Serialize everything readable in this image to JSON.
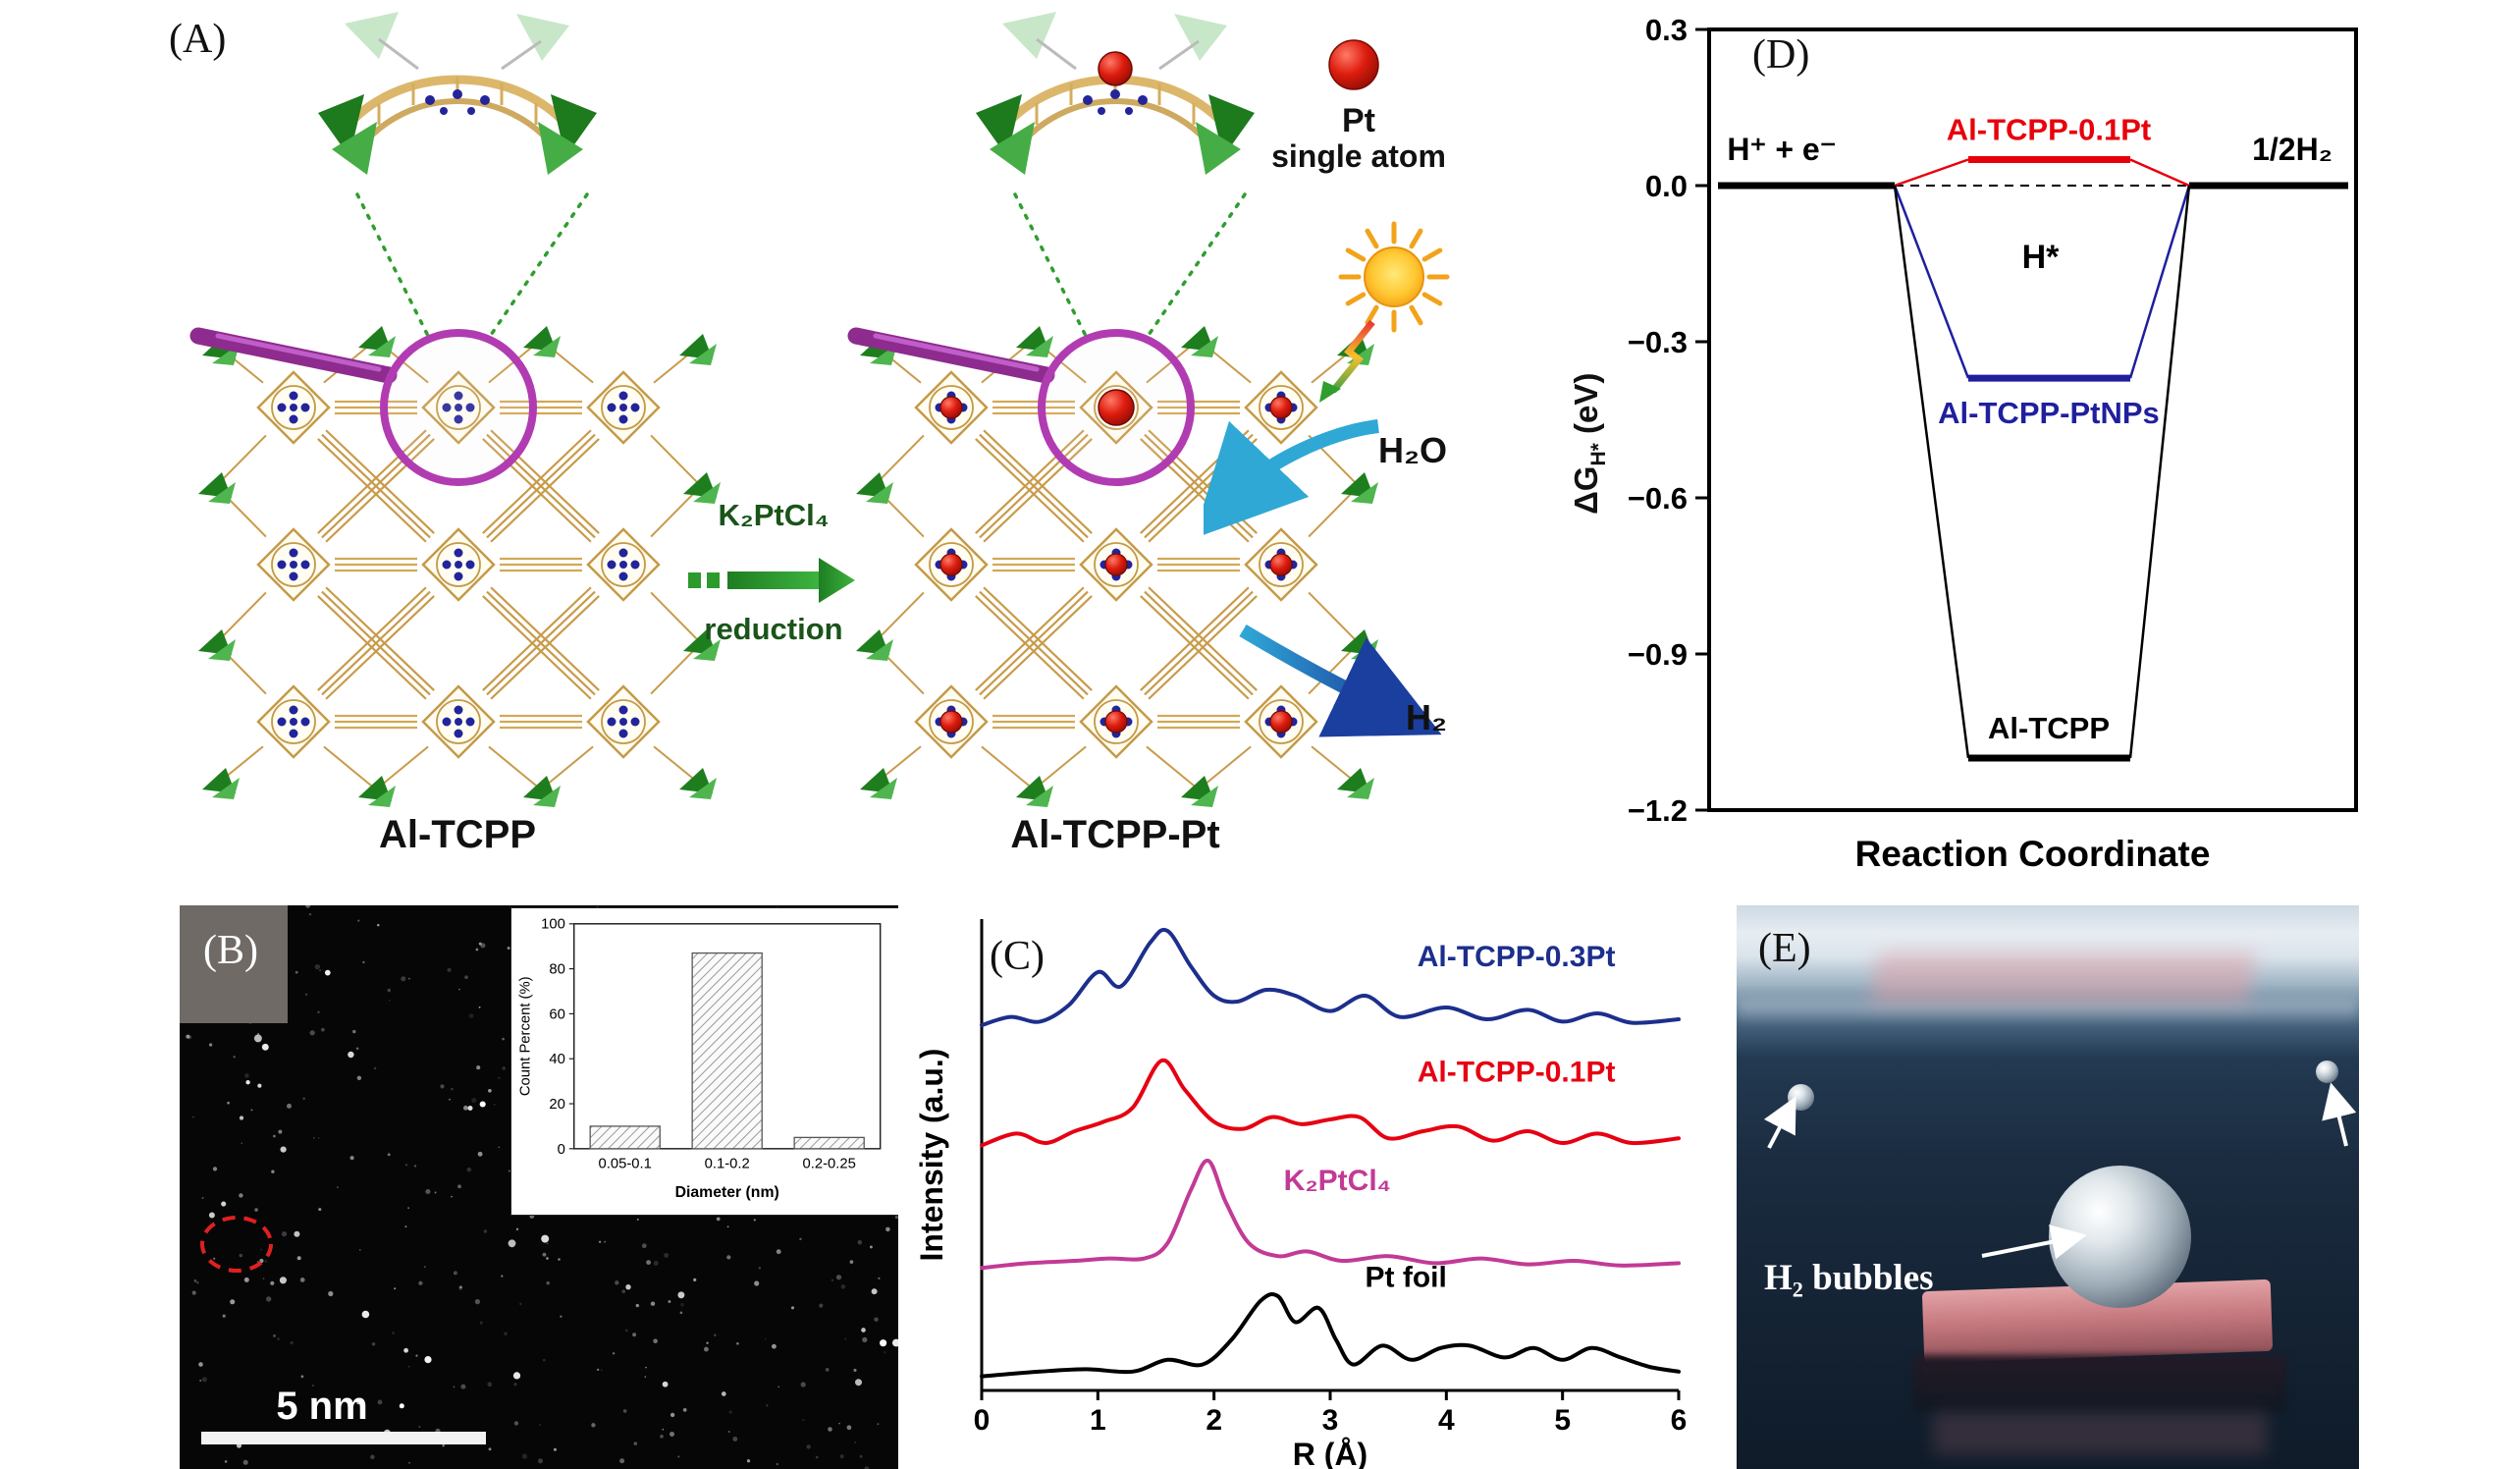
{
  "panelA": {
    "label": "(A)",
    "left_name": "Al-TCPP",
    "right_name": "Al-TCPP-Pt",
    "reagent": "K₂PtCl₄",
    "process": "reduction",
    "pt_line1": "Pt",
    "pt_line2": "single atom",
    "h2o": "H₂O",
    "h2": "H₂"
  },
  "panelB": {
    "label": "(B)",
    "scalebar": "5 nm"
  },
  "panelC": {
    "label": "(C)"
  },
  "panelD": {
    "label": "(D)",
    "ylabel_prefix": "ΔG",
    "ylabel_sub": "H*",
    "ylabel_suffix": " (eV)"
  },
  "panelE": {
    "label": "(E)",
    "caption": "H₂ bubbles"
  },
  "colors": {
    "framework_green": "#1e7e1e",
    "linker_tan": "#c89b4a",
    "pt_red": "#d81e12",
    "magnifier_purple": "#b13cb1"
  },
  "icons": {
    "sun": "☀",
    "magnifier": "🔍",
    "pt-atom": "●",
    "reaction-arrow": "→"
  },
  "chart_data": [
    {
      "id": "size-histogram",
      "type": "bar",
      "categories": [
        "0.05-0.1",
        "0.1-0.2",
        "0.2-0.25"
      ],
      "values": [
        10,
        87,
        5
      ],
      "xlabel": "Diameter (nm)",
      "ylabel": "Count Percent (%)",
      "ylim": [
        0,
        100
      ],
      "yticks": [
        0,
        20,
        40,
        60,
        80,
        100
      ],
      "legend": "none",
      "grid": false
    },
    {
      "id": "exafs-spectra",
      "type": "line",
      "xlabel": "R (Å)",
      "ylabel": "Intensity (a.u.)",
      "xlim": [
        0,
        6
      ],
      "xticks": [
        0,
        1,
        2,
        3,
        4,
        5,
        6
      ],
      "grid": false,
      "series": [
        {
          "name": "Al-TCPP-0.3Pt",
          "color": "#1c2f8c",
          "offset": 3.05,
          "label_at": [
            3.75,
            0.55
          ],
          "points": [
            [
              0,
              0.05
            ],
            [
              0.25,
              0.12
            ],
            [
              0.5,
              0.08
            ],
            [
              0.75,
              0.22
            ],
            [
              1.0,
              0.5
            ],
            [
              1.2,
              0.38
            ],
            [
              1.45,
              0.75
            ],
            [
              1.6,
              0.85
            ],
            [
              1.8,
              0.55
            ],
            [
              2.0,
              0.3
            ],
            [
              2.2,
              0.25
            ],
            [
              2.45,
              0.35
            ],
            [
              2.7,
              0.3
            ],
            [
              3.0,
              0.17
            ],
            [
              3.3,
              0.3
            ],
            [
              3.6,
              0.12
            ],
            [
              4.0,
              0.2
            ],
            [
              4.35,
              0.1
            ],
            [
              4.7,
              0.18
            ],
            [
              5.0,
              0.08
            ],
            [
              5.3,
              0.15
            ],
            [
              5.6,
              0.07
            ],
            [
              6,
              0.1
            ]
          ]
        },
        {
          "name": "Al-TCPP-0.1Pt",
          "color": "#e60012",
          "offset": 2.0,
          "label_at": [
            3.75,
            0.62
          ],
          "points": [
            [
              0,
              0.08
            ],
            [
              0.3,
              0.18
            ],
            [
              0.55,
              0.1
            ],
            [
              0.8,
              0.2
            ],
            [
              1.05,
              0.28
            ],
            [
              1.3,
              0.4
            ],
            [
              1.55,
              0.8
            ],
            [
              1.75,
              0.55
            ],
            [
              2.0,
              0.28
            ],
            [
              2.25,
              0.22
            ],
            [
              2.5,
              0.32
            ],
            [
              2.75,
              0.26
            ],
            [
              3.0,
              0.3
            ],
            [
              3.25,
              0.32
            ],
            [
              3.5,
              0.14
            ],
            [
              3.8,
              0.2
            ],
            [
              4.1,
              0.24
            ],
            [
              4.4,
              0.12
            ],
            [
              4.7,
              0.2
            ],
            [
              5.0,
              0.1
            ],
            [
              5.3,
              0.18
            ],
            [
              5.6,
              0.1
            ],
            [
              6,
              0.14
            ]
          ]
        },
        {
          "name": "K₂PtCl₄",
          "color": "#c23a96",
          "offset": 1.0,
          "label_at": [
            2.6,
            0.7
          ],
          "points": [
            [
              0,
              0.04
            ],
            [
              0.4,
              0.08
            ],
            [
              0.8,
              0.1
            ],
            [
              1.1,
              0.12
            ],
            [
              1.4,
              0.12
            ],
            [
              1.6,
              0.25
            ],
            [
              1.8,
              0.7
            ],
            [
              1.95,
              0.95
            ],
            [
              2.1,
              0.6
            ],
            [
              2.3,
              0.25
            ],
            [
              2.55,
              0.14
            ],
            [
              2.8,
              0.18
            ],
            [
              3.1,
              0.1
            ],
            [
              3.5,
              0.14
            ],
            [
              3.9,
              0.08
            ],
            [
              4.3,
              0.12
            ],
            [
              4.7,
              0.07
            ],
            [
              5.1,
              0.1
            ],
            [
              5.5,
              0.06
            ],
            [
              6,
              0.08
            ]
          ]
        },
        {
          "name": "Pt foil",
          "color": "#000000",
          "offset": 0.08,
          "label_at": [
            3.3,
            0.8
          ],
          "points": [
            [
              0,
              0.04
            ],
            [
              0.5,
              0.08
            ],
            [
              0.9,
              0.1
            ],
            [
              1.3,
              0.08
            ],
            [
              1.6,
              0.18
            ],
            [
              1.9,
              0.14
            ],
            [
              2.15,
              0.35
            ],
            [
              2.4,
              0.68
            ],
            [
              2.55,
              0.72
            ],
            [
              2.7,
              0.5
            ],
            [
              2.9,
              0.62
            ],
            [
              3.05,
              0.35
            ],
            [
              3.2,
              0.14
            ],
            [
              3.45,
              0.3
            ],
            [
              3.7,
              0.18
            ],
            [
              3.95,
              0.28
            ],
            [
              4.2,
              0.3
            ],
            [
              4.5,
              0.2
            ],
            [
              4.75,
              0.28
            ],
            [
              5.0,
              0.18
            ],
            [
              5.25,
              0.28
            ],
            [
              5.5,
              0.2
            ],
            [
              5.75,
              0.12
            ],
            [
              6,
              0.08
            ]
          ]
        }
      ]
    },
    {
      "id": "energy-diagram",
      "type": "line",
      "xlabel": "Reaction Coordinate",
      "ylabel": "ΔG_H* (eV)",
      "ylim": [
        -1.2,
        0.3
      ],
      "yticks": [
        0.3,
        0.0,
        -0.3,
        -0.6,
        -0.9,
        -1.2
      ],
      "grid": false,
      "reactant": {
        "name": "H⁺ + e⁻",
        "energy": 0.0
      },
      "product": {
        "name": "1/2H₂",
        "energy": 0.0
      },
      "intermediate_label": "H*",
      "pathways": [
        {
          "name": "Al-TCPP-0.1Pt",
          "color": "#e8000b",
          "energy": 0.05,
          "label_pos": "above"
        },
        {
          "name": "Al-TCPP-PtNPs",
          "color": "#1f1f9e",
          "energy": -0.37,
          "label_pos": "below"
        },
        {
          "name": "Al-TCPP",
          "color": "#000000",
          "energy": -1.1,
          "label_pos": "above"
        }
      ]
    }
  ]
}
